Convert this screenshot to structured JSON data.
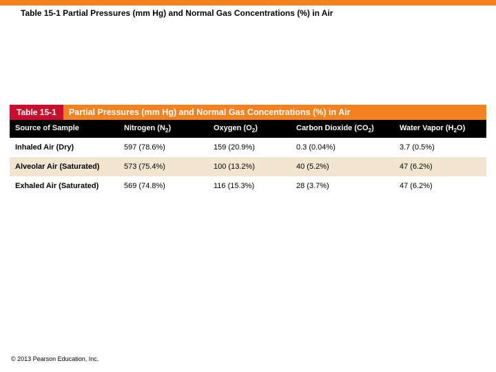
{
  "colors": {
    "orange": "#f58220",
    "red": "#c8102e",
    "black": "#000000",
    "alt_row": "#f2e6d0",
    "white": "#ffffff"
  },
  "slide": {
    "title": "Table 15-1 Partial Pressures (mm Hg) and Normal Gas Concentrations (%) in Air"
  },
  "table": {
    "badge": "Table 15-1",
    "title": "Partial Pressures (mm Hg) and Normal Gas Concentrations (%) in Air",
    "columns": {
      "c0": "Source of Sample",
      "c1_html": "Nitrogen (N<sub>2</sub>)",
      "c2_html": "Oxygen (O<sub>2</sub>)",
      "c3_html": "Carbon Dioxide (CO<sub>2</sub>)",
      "c4_html": "Water Vapor (H<sub>2</sub>O)"
    },
    "rows": [
      {
        "c0": "Inhaled Air (Dry)",
        "c1": "597 (78.6%)",
        "c2": "159 (20.9%)",
        "c3": "0.3 (0.04%)",
        "c4": "3.7 (0.5%)"
      },
      {
        "c0": "Alveolar Air (Saturated)",
        "c1": "573 (75.4%)",
        "c2": "100 (13.2%)",
        "c3": "40 (5.2%)",
        "c4": "47 (6.2%)"
      },
      {
        "c0": "Exhaled Air (Saturated)",
        "c1": "569 (74.8%)",
        "c2": "116 (15.3%)",
        "c3": "28 (3.7%)",
        "c4": "47 (6.2%)"
      }
    ]
  },
  "footer": {
    "copyright": "© 2013 Pearson Education, Inc."
  }
}
